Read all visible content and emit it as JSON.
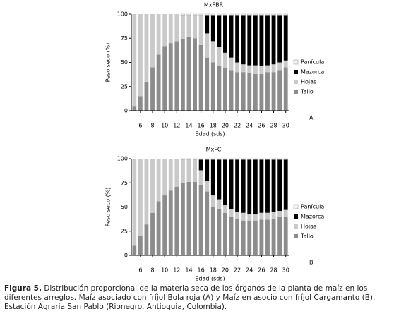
{
  "chart_data": [
    {
      "type": "bar",
      "stacked": true,
      "title": "MxFBR",
      "x_label": "Edad (sds)",
      "y_label": "Peso seco (%)",
      "annotation": "A",
      "x": [
        5,
        6,
        7,
        8,
        9,
        10,
        11,
        12,
        13,
        14,
        15,
        16,
        17,
        18,
        19,
        20,
        21,
        22,
        23,
        24,
        25,
        26,
        27,
        28,
        29,
        30
      ],
      "series": [
        {
          "name": "Tallo",
          "color": "#8c8c8c",
          "values": [
            5,
            15,
            30,
            45,
            58,
            67,
            70,
            72,
            74,
            76,
            75,
            68,
            55,
            50,
            46,
            44,
            42,
            40,
            40,
            39,
            38,
            38,
            40,
            40,
            42,
            45
          ]
        },
        {
          "name": "Hojas",
          "color": "#c9c9c9",
          "values": [
            95,
            85,
            70,
            55,
            42,
            33,
            30,
            28,
            25,
            23,
            24,
            31,
            25,
            22,
            20,
            16,
            13,
            10,
            8,
            8,
            9,
            8,
            7,
            8,
            8,
            7
          ]
        },
        {
          "name": "Mazorca",
          "color": "#000000",
          "values": [
            0,
            0,
            0,
            0,
            0,
            0,
            0,
            0,
            0,
            0,
            0,
            0,
            19,
            27,
            33,
            39,
            44,
            49,
            51,
            52,
            52,
            53,
            52,
            51,
            49,
            47
          ]
        },
        {
          "name": "Panícula",
          "color": "#f4f4f4",
          "values": [
            0,
            0,
            0,
            0,
            0,
            0,
            0,
            0,
            1,
            1,
            1,
            1,
            1,
            1,
            1,
            1,
            1,
            1,
            1,
            1,
            1,
            1,
            1,
            1,
            1,
            1
          ]
        }
      ],
      "xlim": [
        4.5,
        30.5
      ],
      "xticks": [
        6,
        8,
        10,
        12,
        14,
        16,
        18,
        20,
        22,
        24,
        26,
        28,
        30
      ],
      "ylim": [
        0,
        100
      ],
      "yticks": [
        0,
        25,
        50,
        75,
        100
      ],
      "legend": "right"
    },
    {
      "type": "bar",
      "stacked": true,
      "title": "MxFC",
      "x_label": "Edad (sds)",
      "y_label": "Peso seco (%)",
      "annotation": "B",
      "x": [
        5,
        6,
        7,
        8,
        9,
        10,
        11,
        12,
        13,
        14,
        15,
        16,
        17,
        18,
        19,
        20,
        21,
        22,
        23,
        24,
        25,
        26,
        27,
        28,
        29,
        30
      ],
      "series": [
        {
          "name": "Tallo",
          "color": "#8c8c8c",
          "values": [
            10,
            20,
            32,
            44,
            56,
            62,
            67,
            71,
            75,
            76,
            76,
            73,
            66,
            50,
            48,
            44,
            40,
            38,
            36,
            36,
            36,
            37,
            37,
            38,
            40,
            40
          ]
        },
        {
          "name": "Hojas",
          "color": "#c9c9c9",
          "values": [
            90,
            80,
            68,
            56,
            44,
            38,
            33,
            29,
            24,
            23,
            23,
            15,
            11,
            12,
            10,
            8,
            8,
            7,
            8,
            7,
            7,
            7,
            7,
            7,
            6,
            7
          ]
        },
        {
          "name": "Mazorca",
          "color": "#000000",
          "values": [
            0,
            0,
            0,
            0,
            0,
            0,
            0,
            0,
            0,
            0,
            0,
            11,
            22,
            37,
            41,
            47,
            51,
            54,
            55,
            56,
            56,
            55,
            55,
            54,
            53,
            52
          ]
        },
        {
          "name": "Panícula",
          "color": "#f4f4f4",
          "values": [
            0,
            0,
            0,
            0,
            0,
            0,
            0,
            0,
            1,
            1,
            1,
            1,
            1,
            1,
            1,
            1,
            1,
            1,
            1,
            1,
            1,
            1,
            1,
            1,
            1,
            1
          ]
        }
      ],
      "xlim": [
        4.5,
        30.5
      ],
      "xticks": [
        6,
        8,
        10,
        12,
        14,
        16,
        18,
        20,
        22,
        24,
        26,
        28,
        30
      ],
      "ylim": [
        0,
        100
      ],
      "yticks": [
        0,
        25,
        50,
        75,
        100
      ],
      "legend": "right"
    }
  ],
  "caption": {
    "label": "Figura 5.",
    "text": "Distribución proporcional de la materia seca de los órganos de la planta de maíz en los diferentes arreglos. Maíz asociado con fríjol Bola roja (A) y Maíz en asocio con fríjol Cargamanto (B).  Estación Agraria San Pablo (Rionegro, Antioquia, Colombia)."
  }
}
